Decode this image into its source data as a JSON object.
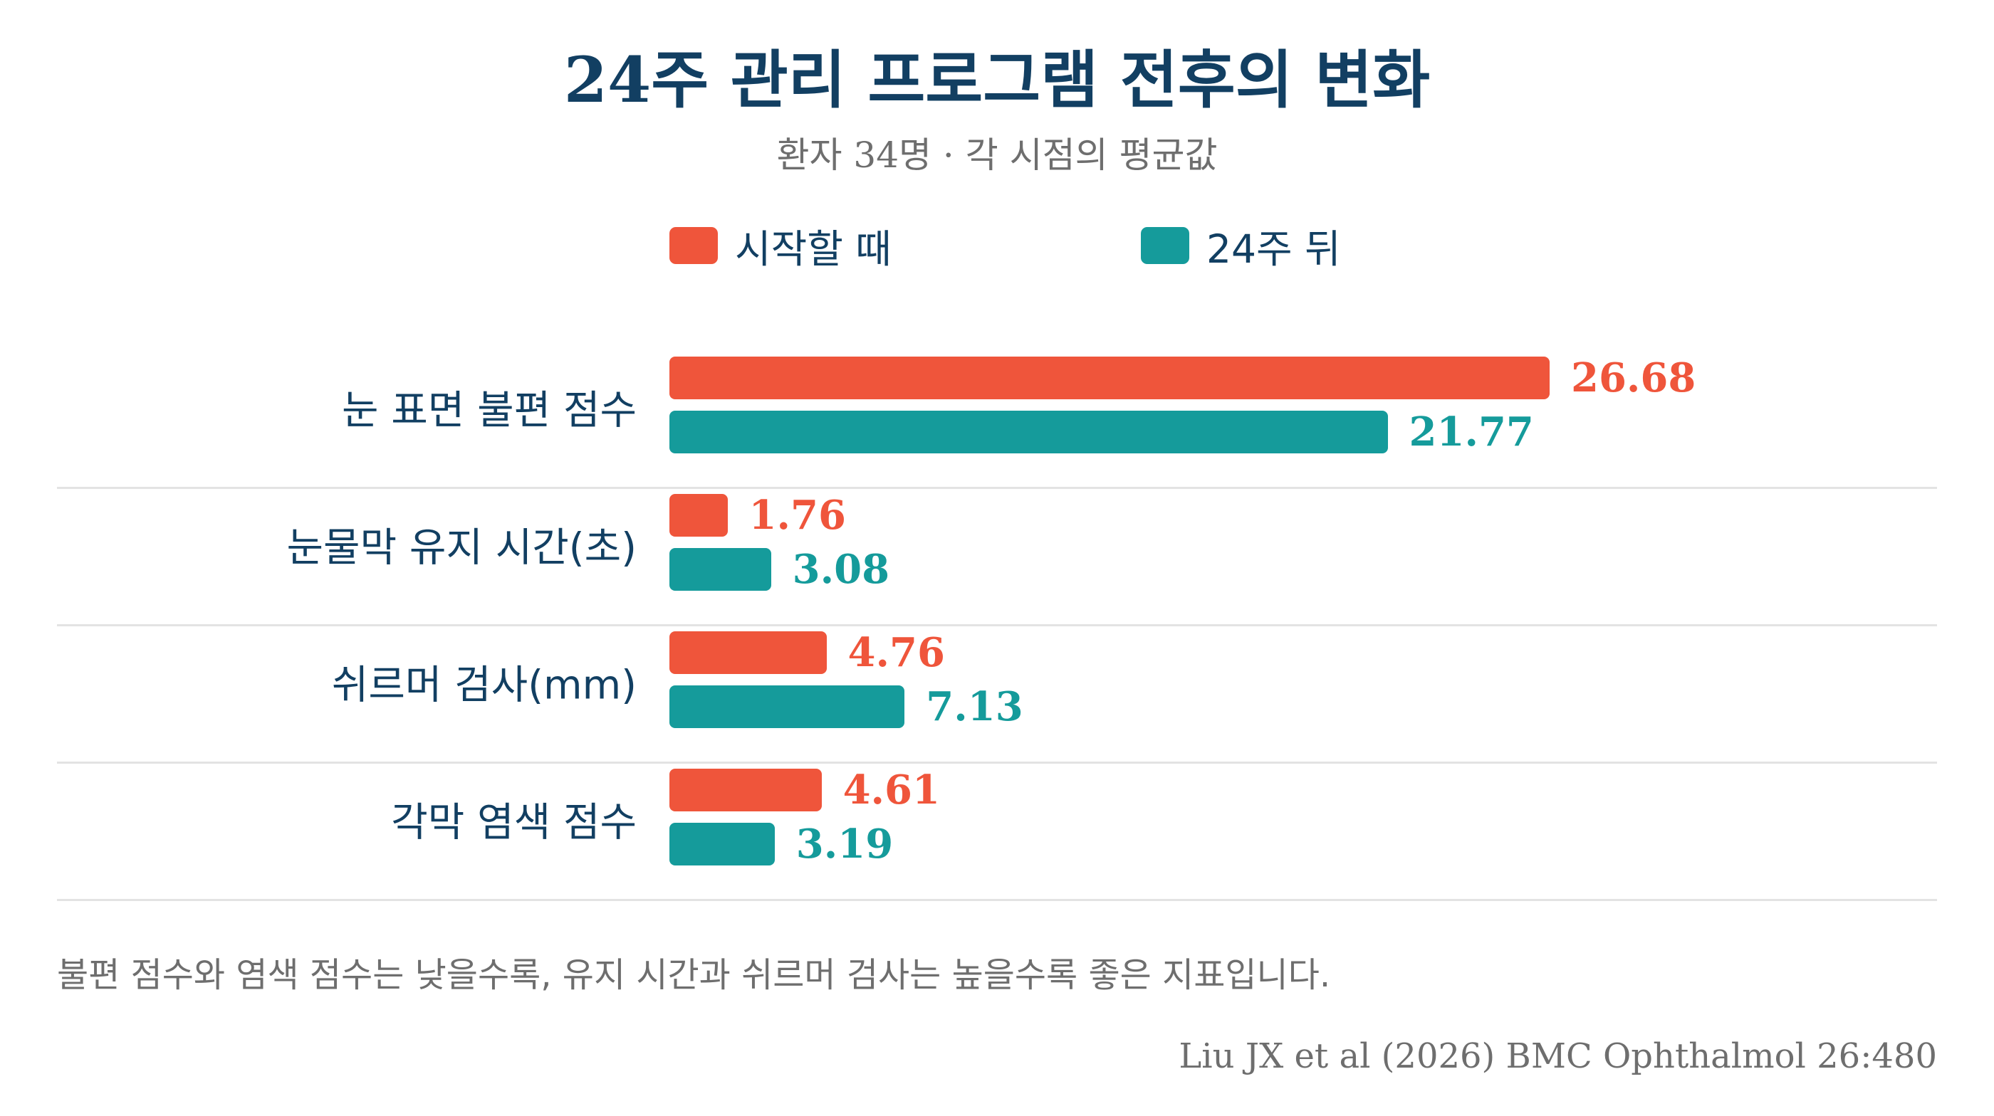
{
  "chart_data": {
    "type": "bar",
    "orientation": "horizontal",
    "title": "24주 관리 프로그램 전후의 변화",
    "subtitle": "환자 34명 · 각 시점의 평균값",
    "categories": [
      "눈 표면 불편 점수",
      "눈물막 유지 시간(초)",
      "쉬르머 검사(mm)",
      "각막 염색 점수"
    ],
    "series": [
      {
        "name": "시작할 때",
        "color": "#ef553b",
        "values": [
          26.68,
          1.76,
          4.76,
          4.61
        ],
        "labels": [
          "26.68",
          "1.76",
          "4.76",
          "4.61"
        ]
      },
      {
        "name": "24주 뒤",
        "color": "#159b9b",
        "values": [
          21.77,
          3.08,
          7.13,
          3.19
        ],
        "labels": [
          "21.77",
          "3.08",
          "7.13",
          "3.19"
        ]
      }
    ],
    "xlim": [
      0,
      28
    ],
    "grid": false,
    "legend_position": "top-center",
    "note": "불편 점수와 염색 점수는 낮을수록, 유지 시간과 쉬르머 검사는 높을수록 좋은 지표입니다.",
    "source": "Liu JX et al (2026) BMC Ophthalmol 26:480"
  }
}
